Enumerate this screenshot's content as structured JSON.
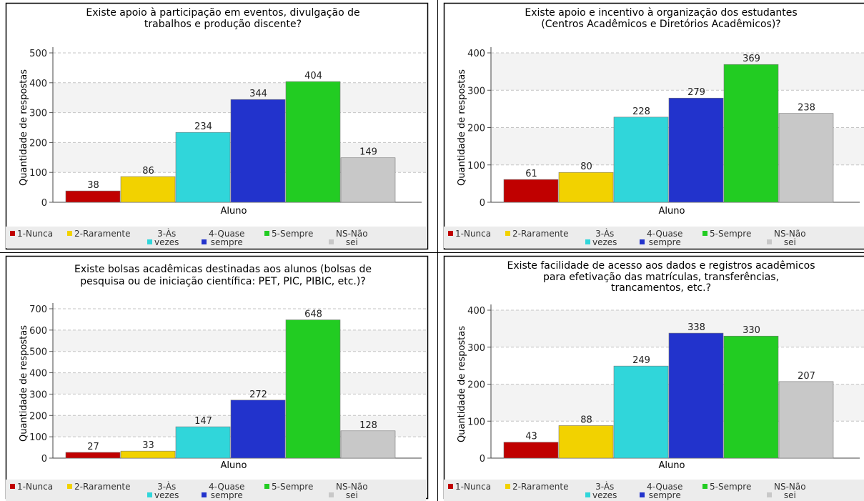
{
  "ylabel": "Quantidade de respostas",
  "xlabel": "Aluno",
  "colors": [
    "#c00000",
    "#f2d200",
    "#30d6da",
    "#2233cc",
    "#22cc22",
    "#c8c8c8"
  ],
  "legend": [
    {
      "line1": "1-Nunca",
      "line2": "",
      "icon": "red-square-icon"
    },
    {
      "line1": "2-Raramente",
      "line2": "",
      "icon": "yellow-square-icon"
    },
    {
      "line1": "3-Às",
      "line2": "vezes",
      "icon": "cyan-square-icon"
    },
    {
      "line1": "4-Quase",
      "line2": "sempre",
      "icon": "blue-square-icon"
    },
    {
      "line1": "5-Sempre",
      "line2": "",
      "icon": "green-square-icon"
    },
    {
      "line1": "NS-Não",
      "line2": "sei",
      "icon": "gray-square-icon"
    }
  ],
  "chart_data": [
    {
      "type": "bar",
      "title": "Existe apoio à participação em eventos, divulgação de trabalhos e produção discente?",
      "title_lines": [
        "Existe apoio à participação em eventos, divulgação de",
        "trabalhos e produção discente?"
      ],
      "categories": [
        "1-Nunca",
        "2-Raramente",
        "3-Às vezes",
        "4-Quase sempre",
        "5-Sempre",
        "NS-Não sei"
      ],
      "values": [
        38,
        86,
        234,
        344,
        404,
        149
      ],
      "ylim": [
        0,
        500
      ],
      "yticks": [
        0,
        100,
        200,
        300,
        400,
        500
      ],
      "xlabel": "Aluno",
      "ylabel": "Quantidade de respostas",
      "grid": true,
      "legend": "bottom"
    },
    {
      "type": "bar",
      "title": "Existe apoio e incentivo à organização dos estudantes (Centros Acadêmicos e Diretórios Acadêmicos)?",
      "title_lines": [
        "Existe apoio e incentivo à organização dos estudantes",
        "(Centros Acadêmicos e Diretórios Acadêmicos)?"
      ],
      "categories": [
        "1-Nunca",
        "2-Raramente",
        "3-Às vezes",
        "4-Quase sempre",
        "5-Sempre",
        "NS-Não sei"
      ],
      "values": [
        61,
        80,
        228,
        279,
        369,
        238
      ],
      "ylim": [
        0,
        400
      ],
      "yticks": [
        0,
        100,
        200,
        300,
        400
      ],
      "xlabel": "Aluno",
      "ylabel": "Quantidade de respostas",
      "grid": true,
      "legend": "bottom"
    },
    {
      "type": "bar",
      "title": "Existe bolsas acadêmicas destinadas aos alunos (bolsas de pesquisa ou de iniciação científica: PET, PIC, PIBIC, etc.)?",
      "title_lines": [
        "Existe bolsas acadêmicas destinadas aos alunos (bolsas de",
        "pesquisa ou de iniciação científica: PET, PIC, PIBIC, etc.)?"
      ],
      "categories": [
        "1-Nunca",
        "2-Raramente",
        "3-Às vezes",
        "4-Quase sempre",
        "5-Sempre",
        "NS-Não sei"
      ],
      "values": [
        27,
        33,
        147,
        272,
        648,
        128
      ],
      "ylim": [
        0,
        700
      ],
      "yticks": [
        0,
        100,
        200,
        300,
        400,
        500,
        600,
        700
      ],
      "xlabel": "Aluno",
      "ylabel": "Quantidade de respostas",
      "grid": true,
      "legend": "bottom"
    },
    {
      "type": "bar",
      "title": "Existe facilidade de acesso aos dados e registros acadêmicos para efetivação das matrículas, transferências, trancamentos, etc.?",
      "title_lines": [
        "Existe facilidade de acesso aos dados e registros acadêmicos",
        "para efetivação das matrículas, transferências,",
        "trancamentos, etc.?"
      ],
      "categories": [
        "1-Nunca",
        "2-Raramente",
        "3-Às vezes",
        "4-Quase sempre",
        "5-Sempre",
        "NS-Não sei"
      ],
      "values": [
        43,
        88,
        249,
        338,
        330,
        207
      ],
      "ylim": [
        0,
        400
      ],
      "yticks": [
        0,
        100,
        200,
        300,
        400
      ],
      "xlabel": "Aluno",
      "ylabel": "Quantidade de respostas",
      "grid": true,
      "legend": "bottom"
    }
  ]
}
